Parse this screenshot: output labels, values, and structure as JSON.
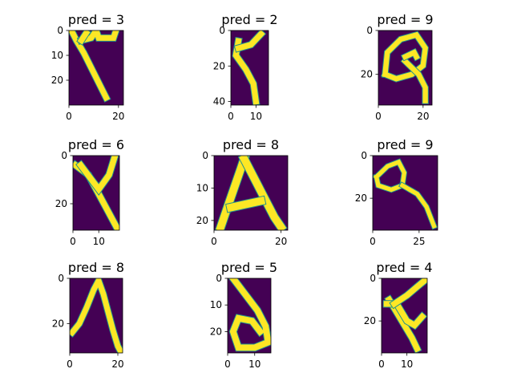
{
  "figure": {
    "background": "#ffffff",
    "colormap": {
      "background": "#440154",
      "ink": "#fde725",
      "edge": "#21918c"
    }
  },
  "chart_data": [
    {
      "type": "heatmap",
      "title": "pred = 3",
      "xticks": [
        "0",
        "20"
      ],
      "yticks": [
        "0",
        "10",
        "20"
      ],
      "xlim": [
        0,
        22
      ],
      "ylim": [
        30,
        0
      ],
      "strokes": [
        [
          [
            1,
            0
          ],
          [
            3,
            4
          ],
          [
            6,
            9
          ],
          [
            9,
            15
          ],
          [
            12,
            21
          ],
          [
            15,
            27
          ]
        ],
        [
          [
            5,
            4
          ],
          [
            9,
            3
          ],
          [
            11,
            0
          ],
          [
            12,
            3
          ],
          [
            15,
            3
          ],
          [
            18,
            3
          ],
          [
            19,
            0
          ]
        ],
        [
          [
            5,
            4
          ],
          [
            7,
            1
          ]
        ]
      ]
    },
    {
      "type": "heatmap",
      "title": "pred = 2",
      "xticks": [
        "0",
        "10"
      ],
      "yticks": [
        "0",
        "20",
        "40"
      ],
      "xlim": [
        0,
        15
      ],
      "ylim": [
        42,
        0
      ],
      "strokes": [
        [
          [
            3,
            6
          ],
          [
            2,
            14
          ],
          [
            6,
            22
          ],
          [
            9,
            30
          ],
          [
            10,
            40
          ]
        ],
        [
          [
            3,
            10
          ],
          [
            8,
            8
          ],
          [
            12,
            2
          ]
        ]
      ]
    },
    {
      "type": "heatmap",
      "title": "pred = 9",
      "xticks": [
        "0",
        "20"
      ],
      "yticks": [
        "0",
        "20"
      ],
      "xlim": [
        0,
        24
      ],
      "ylim": [
        34,
        0
      ],
      "strokes": [
        [
          [
            3,
            20
          ],
          [
            4,
            10
          ],
          [
            10,
            4
          ],
          [
            17,
            2
          ],
          [
            21,
            8
          ],
          [
            20,
            16
          ],
          [
            15,
            20
          ],
          [
            8,
            22
          ],
          [
            3,
            20
          ]
        ],
        [
          [
            12,
            14
          ],
          [
            18,
            20
          ],
          [
            21,
            26
          ],
          [
            21,
            32
          ]
        ],
        [
          [
            12,
            12
          ],
          [
            16,
            10
          ],
          [
            17,
            12
          ]
        ]
      ]
    },
    {
      "type": "heatmap",
      "title": "pred = 6",
      "xticks": [
        "0",
        "10"
      ],
      "yticks": [
        "0",
        "20"
      ],
      "xlim": [
        0,
        18
      ],
      "ylim": [
        31,
        0
      ],
      "strokes": [
        [
          [
            1,
            4
          ],
          [
            6,
            8
          ],
          [
            9,
            14
          ],
          [
            12,
            20
          ],
          [
            17,
            30
          ]
        ],
        [
          [
            3,
            4
          ],
          [
            10,
            14
          ],
          [
            14,
            8
          ],
          [
            16,
            1
          ]
        ]
      ]
    },
    {
      "type": "heatmap",
      "title": "pred = 8",
      "xticks": [
        "0",
        "20"
      ],
      "yticks": [
        "0",
        "10",
        "20"
      ],
      "xlim": [
        0,
        22
      ],
      "ylim": [
        23,
        0
      ],
      "strokes": [
        [
          [
            2,
            22
          ],
          [
            4,
            16
          ],
          [
            6,
            10
          ],
          [
            8,
            4
          ],
          [
            9,
            1
          ]
        ],
        [
          [
            9,
            1
          ],
          [
            12,
            7
          ],
          [
            15,
            13
          ],
          [
            18,
            19
          ],
          [
            20,
            22
          ]
        ],
        [
          [
            5,
            16
          ],
          [
            14,
            14
          ]
        ]
      ]
    },
    {
      "type": "heatmap",
      "title": "pred = 9",
      "xticks": [
        "0",
        "25"
      ],
      "yticks": [
        "0",
        "20"
      ],
      "xlim": [
        0,
        35
      ],
      "ylim": [
        35,
        0
      ],
      "strokes": [
        [
          [
            2,
            10
          ],
          [
            8,
            5
          ],
          [
            14,
            3
          ],
          [
            17,
            8
          ],
          [
            16,
            14
          ],
          [
            10,
            16
          ],
          [
            3,
            14
          ],
          [
            2,
            10
          ]
        ],
        [
          [
            16,
            14
          ],
          [
            24,
            18
          ],
          [
            29,
            24
          ],
          [
            33,
            33
          ]
        ]
      ]
    },
    {
      "type": "heatmap",
      "title": "pred = 8",
      "xticks": [
        "0",
        "20"
      ],
      "yticks": [
        "0",
        "20"
      ],
      "xlim": [
        0,
        22
      ],
      "ylim": [
        33,
        0
      ],
      "strokes": [
        [
          [
            1,
            24
          ],
          [
            4,
            20
          ],
          [
            7,
            13
          ],
          [
            10,
            5
          ],
          [
            12,
            1
          ],
          [
            14,
            7
          ],
          [
            16,
            15
          ],
          [
            18,
            23
          ],
          [
            20,
            30
          ],
          [
            21,
            32
          ]
        ]
      ]
    },
    {
      "type": "heatmap",
      "title": "pred = 5",
      "xticks": [
        "0",
        "10"
      ],
      "yticks": [
        "0",
        "10",
        "20"
      ],
      "xlim": [
        0,
        16
      ],
      "ylim": [
        28,
        0
      ],
      "strokes": [
        [
          [
            2,
            0
          ],
          [
            5,
            4
          ],
          [
            8,
            8
          ],
          [
            11,
            12
          ],
          [
            14,
            18
          ],
          [
            15,
            24
          ],
          [
            10,
            26
          ],
          [
            4,
            26
          ],
          [
            2,
            20
          ],
          [
            4,
            15
          ],
          [
            9,
            16
          ],
          [
            12,
            20
          ]
        ]
      ]
    },
    {
      "type": "heatmap",
      "title": "pred = 4",
      "xticks": [
        "0",
        "10"
      ],
      "yticks": [
        "0",
        "20"
      ],
      "xlim": [
        0,
        18
      ],
      "ylim": [
        35,
        0
      ],
      "strokes": [
        [
          [
            3,
            10
          ],
          [
            6,
            16
          ],
          [
            9,
            22
          ],
          [
            12,
            28
          ],
          [
            14,
            33
          ]
        ],
        [
          [
            2,
            12
          ],
          [
            6,
            12
          ],
          [
            10,
            20
          ],
          [
            13,
            22
          ],
          [
            16,
            18
          ]
        ],
        [
          [
            5,
            12
          ],
          [
            10,
            8
          ],
          [
            14,
            4
          ],
          [
            17,
            1
          ]
        ]
      ]
    }
  ]
}
